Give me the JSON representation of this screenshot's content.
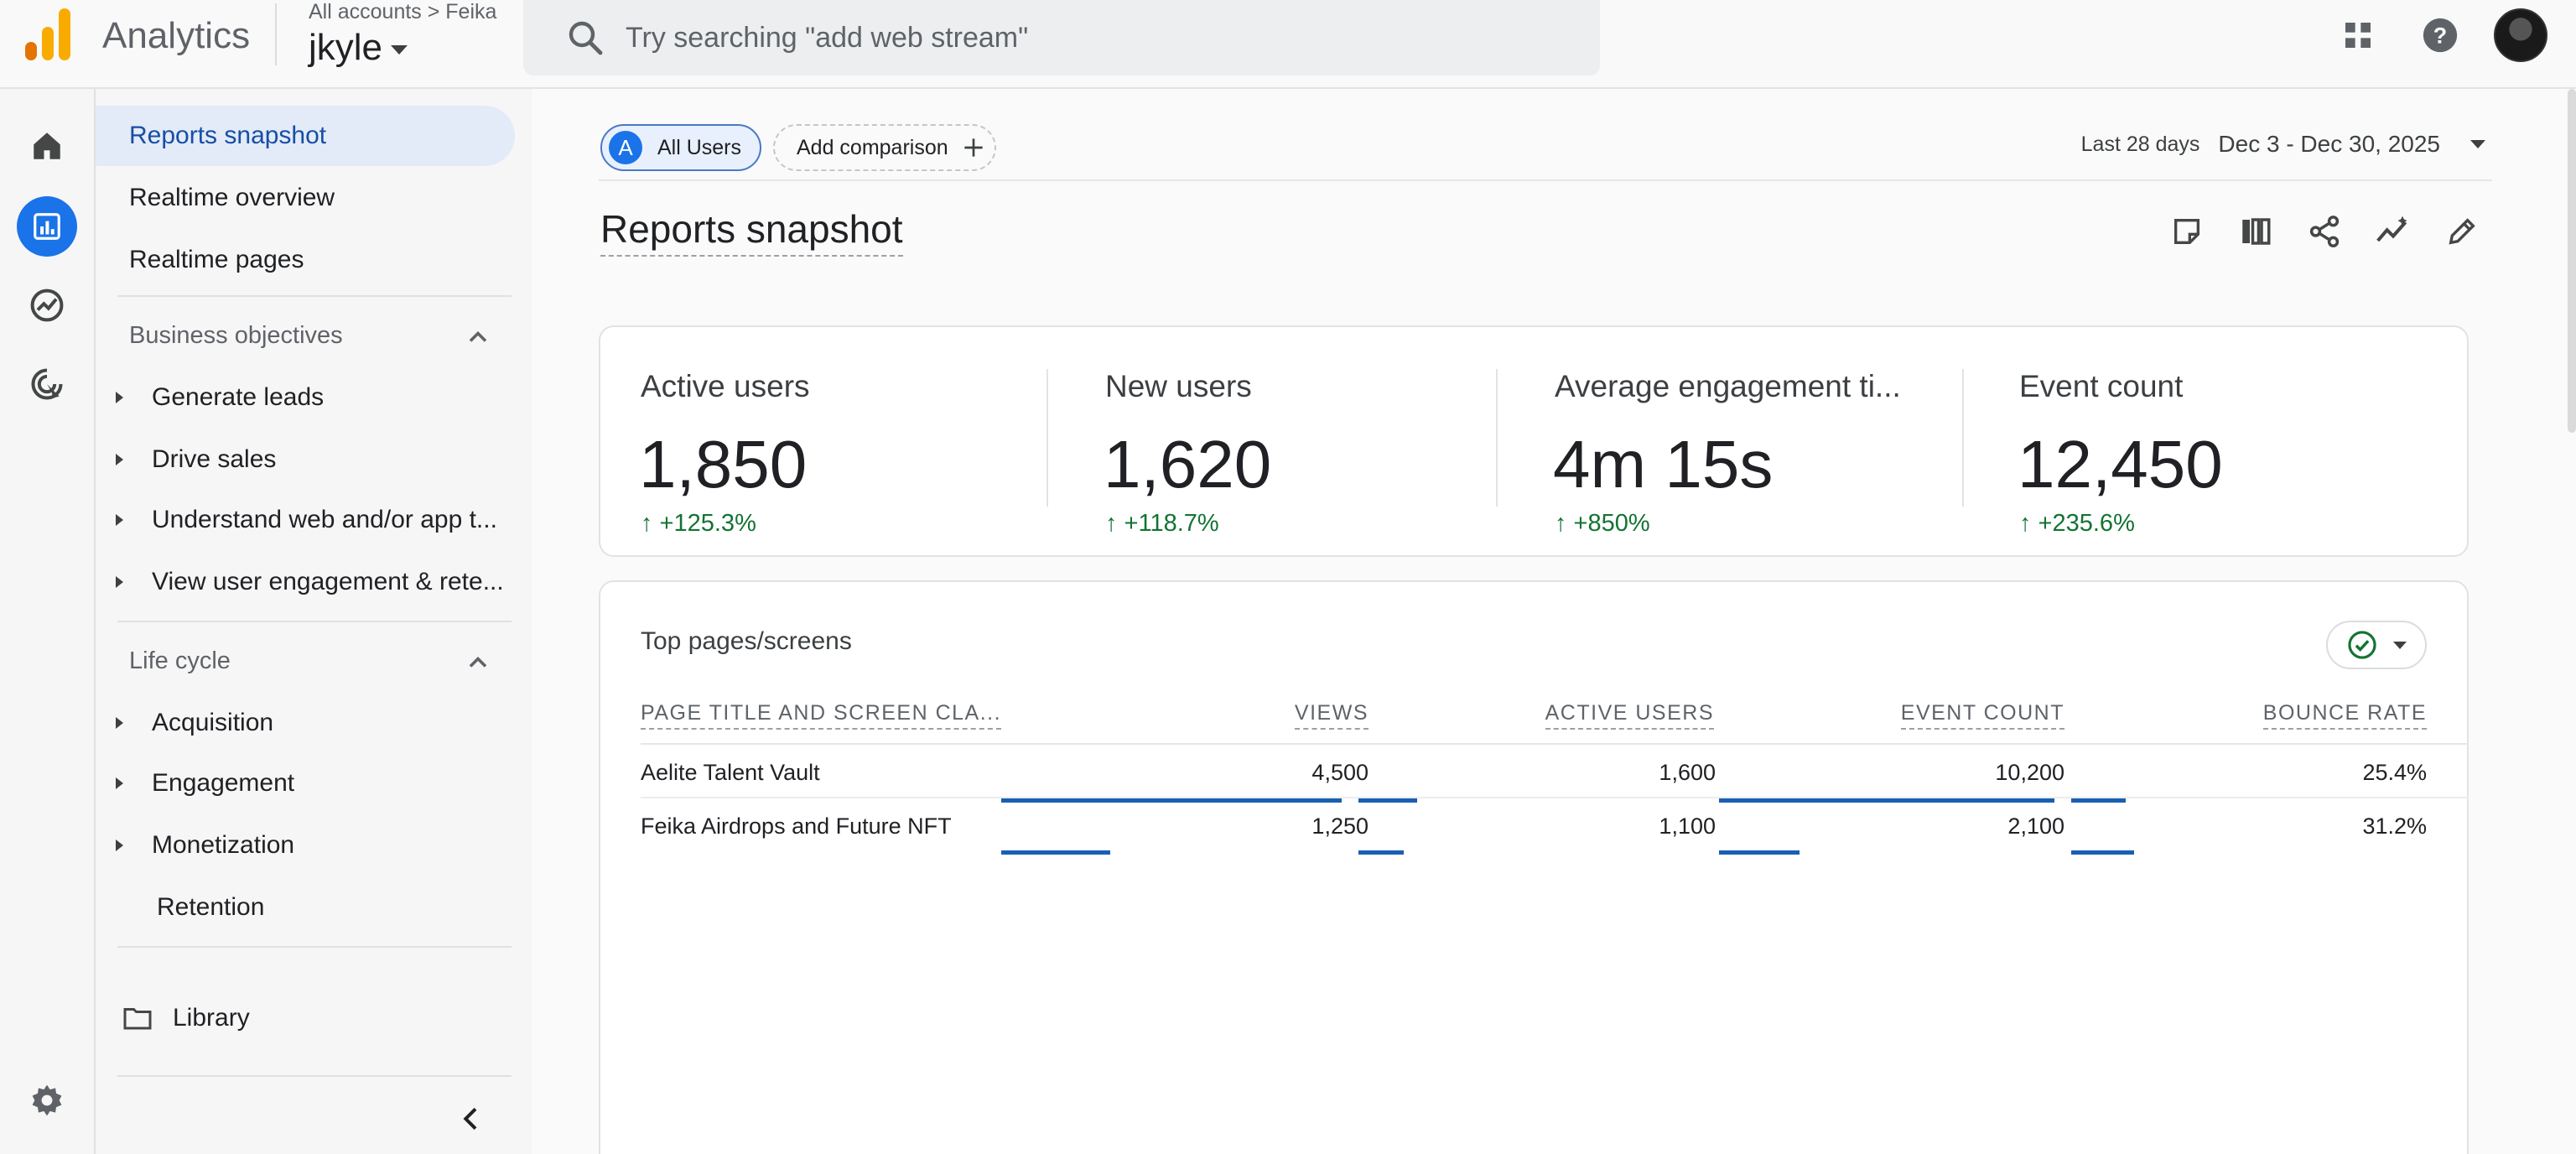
{
  "header": {
    "app_title": "Analytics",
    "account_path": "All accounts > Feika",
    "account_name": "jkyle",
    "search_placeholder": "Try searching \"add web stream\"",
    "icons": [
      "analytics-logo",
      "search-icon",
      "apps-grid-icon",
      "help-icon",
      "avatar"
    ]
  },
  "rail": {
    "items": [
      "home-icon",
      "reports-icon",
      "explore-icon",
      "advertising-icon",
      "settings-icon"
    ],
    "active": "reports-icon"
  },
  "nav": {
    "top_items": [
      "Reports snapshot",
      "Realtime overview",
      "Realtime pages"
    ],
    "active_item": "Reports snapshot",
    "business_objectives": {
      "header": "Business objectives",
      "items": [
        "Generate leads",
        "Drive sales",
        "Understand web and/or app t...",
        "View user engagement & rete..."
      ]
    },
    "life_cycle": {
      "header": "Life cycle",
      "items": [
        "Acquisition",
        "Engagement",
        "Monetization"
      ],
      "leaf": "Retention"
    },
    "library": "Library"
  },
  "main": {
    "comparison": {
      "badge": "A",
      "all_users": "All Users",
      "add_comparison": "Add comparison"
    },
    "date_range": {
      "label": "Last 28 days",
      "value": "Dec 3 - Dec 30, 2025"
    },
    "page_title": "Reports snapshot",
    "toolbar_icons": [
      "customize-report-icon",
      "compare-columns-icon",
      "share-icon",
      "insights-icon",
      "edit-icon"
    ],
    "metrics": [
      {
        "label": "Active users",
        "value": "1,850",
        "change": "↑ +125.3%"
      },
      {
        "label": "New users",
        "value": "1,620",
        "change": "↑ +118.7%"
      },
      {
        "label": "Average engagement ti...",
        "value": "4m 15s",
        "change": "↑ +850%"
      },
      {
        "label": "Event count",
        "value": "12,450",
        "change": "↑ +235.6%"
      }
    ],
    "table": {
      "title": "Top pages/screens",
      "columns": [
        "PAGE TITLE AND SCREEN CLA...",
        "VIEWS",
        "ACTIVE USERS",
        "EVENT COUNT",
        "BOUNCE RATE"
      ],
      "rows": [
        {
          "page": "Aelite Talent Vault",
          "views": "4,500",
          "active_users": "1,600",
          "event_count": "10,200",
          "bounce_rate": "25.4%",
          "views_share": 1.0,
          "users_share": 0.34,
          "events_share": 1.0,
          "bounce_share": 0.32
        },
        {
          "page": "Feika Airdrops and Future NFT",
          "views": "1,250",
          "active_users": "1,100",
          "event_count": "2,100",
          "bounce_rate": "31.2%",
          "views_share": 0.32,
          "users_share": 0.26,
          "events_share": 0.24,
          "bounce_share": 0.37
        }
      ]
    }
  },
  "colors": {
    "accent": "#1a73e8",
    "positive": "#137333",
    "bar": "#1a5fb4",
    "logo_orange": "#f9ab00",
    "logo_dark": "#e37400"
  }
}
